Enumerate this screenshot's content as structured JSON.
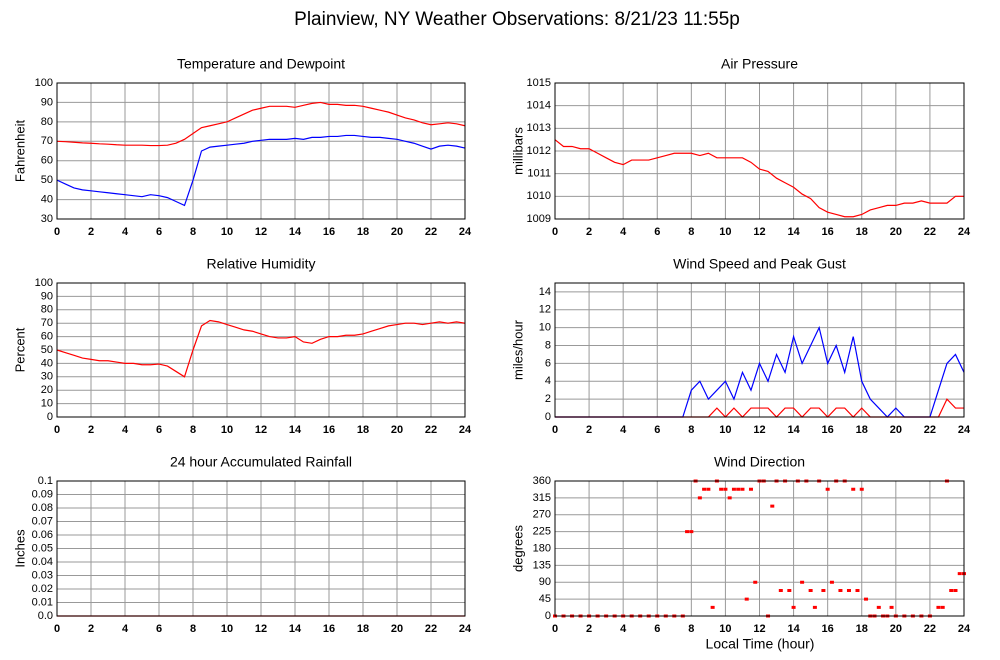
{
  "title": "Plainview, NY Weather Observations: 8/21/23 11:55p",
  "xlabel": "Local Time (hour)",
  "chart_data": [
    {
      "type": "line",
      "title": "Temperature and Dewpoint",
      "ylabel": "Fahrenheit",
      "x": [
        0,
        0.5,
        1,
        1.5,
        2,
        2.5,
        3,
        3.5,
        4,
        4.5,
        5,
        5.5,
        6,
        6.5,
        7,
        7.5,
        8,
        8.5,
        9,
        9.5,
        10,
        10.5,
        11,
        11.5,
        12,
        12.5,
        13,
        13.5,
        14,
        14.5,
        15,
        15.5,
        16,
        16.5,
        17,
        17.5,
        18,
        18.5,
        19,
        19.5,
        20,
        20.5,
        21,
        21.5,
        22,
        22.5,
        23,
        23.5,
        24
      ],
      "series": [
        {
          "color": "#ff0000",
          "values": [
            70,
            69.8,
            69.5,
            69.2,
            69,
            68.7,
            68.5,
            68.2,
            68,
            68,
            68,
            67.8,
            67.8,
            68,
            69,
            71,
            74,
            77,
            78,
            79,
            80,
            82,
            84,
            86,
            87,
            88,
            88,
            88,
            87.5,
            88.5,
            89.5,
            90,
            89,
            89,
            88.5,
            88.5,
            88,
            87,
            86,
            85,
            83.5,
            82,
            81,
            79.5,
            78.5,
            79,
            79.5,
            79,
            78
          ]
        },
        {
          "color": "#0000ff",
          "values": [
            50,
            48,
            46,
            45,
            44.5,
            44,
            43.5,
            43,
            42.5,
            42,
            41.5,
            42.5,
            42,
            41,
            39,
            37,
            50,
            65,
            67,
            67.5,
            68,
            68.5,
            69,
            70,
            70.5,
            71,
            71,
            71,
            71.5,
            71,
            72,
            72,
            72.5,
            72.5,
            73,
            73,
            72.5,
            72,
            72,
            71.5,
            71,
            70,
            69,
            67.5,
            66,
            67.5,
            68,
            67.5,
            66.5
          ]
        }
      ],
      "xlim": [
        0,
        24
      ],
      "xticks": [
        0,
        2,
        4,
        6,
        8,
        10,
        12,
        14,
        16,
        18,
        20,
        22,
        24
      ],
      "ylim": [
        30,
        100
      ],
      "yticks": [
        30,
        40,
        50,
        60,
        70,
        80,
        90,
        100
      ],
      "grid": true
    },
    {
      "type": "line",
      "title": "Air Pressure",
      "ylabel": "millibars",
      "x": [
        0,
        0.5,
        1,
        1.5,
        2,
        2.5,
        3,
        3.5,
        4,
        4.5,
        5,
        5.5,
        6,
        6.5,
        7,
        7.5,
        8,
        8.5,
        9,
        9.5,
        10,
        10.5,
        11,
        11.5,
        12,
        12.5,
        13,
        13.5,
        14,
        14.5,
        15,
        15.5,
        16,
        16.5,
        17,
        17.5,
        18,
        18.5,
        19,
        19.5,
        20,
        20.5,
        21,
        21.5,
        22,
        22.5,
        23,
        23.5,
        24
      ],
      "series": [
        {
          "color": "#ff0000",
          "values": [
            1012.5,
            1012.2,
            1012.2,
            1012.1,
            1012.1,
            1011.9,
            1011.7,
            1011.5,
            1011.4,
            1011.6,
            1011.6,
            1011.6,
            1011.7,
            1011.8,
            1011.9,
            1011.9,
            1011.9,
            1011.8,
            1011.9,
            1011.7,
            1011.7,
            1011.7,
            1011.7,
            1011.5,
            1011.2,
            1011.1,
            1010.8,
            1010.6,
            1010.4,
            1010.1,
            1009.9,
            1009.5,
            1009.3,
            1009.2,
            1009.1,
            1009.1,
            1009.2,
            1009.4,
            1009.5,
            1009.6,
            1009.6,
            1009.7,
            1009.7,
            1009.8,
            1009.7,
            1009.7,
            1009.7,
            1010,
            1010
          ]
        }
      ],
      "xlim": [
        0,
        24
      ],
      "xticks": [
        0,
        2,
        4,
        6,
        8,
        10,
        12,
        14,
        16,
        18,
        20,
        22,
        24
      ],
      "ylim": [
        1009,
        1015
      ],
      "yticks": [
        1009,
        1010,
        1011,
        1012,
        1013,
        1014,
        1015
      ],
      "grid": true
    },
    {
      "type": "line",
      "title": "Relative Humidity",
      "ylabel": "Percent",
      "x": [
        0,
        0.5,
        1,
        1.5,
        2,
        2.5,
        3,
        3.5,
        4,
        4.5,
        5,
        5.5,
        6,
        6.5,
        7,
        7.5,
        8,
        8.5,
        9,
        9.5,
        10,
        10.5,
        11,
        11.5,
        12,
        12.5,
        13,
        13.5,
        14,
        14.5,
        15,
        15.5,
        16,
        16.5,
        17,
        17.5,
        18,
        18.5,
        19,
        19.5,
        20,
        20.5,
        21,
        21.5,
        22,
        22.5,
        23,
        23.5,
        24
      ],
      "series": [
        {
          "color": "#ff0000",
          "values": [
            50,
            48,
            46,
            44,
            43,
            42,
            42,
            41,
            40,
            40,
            39,
            39,
            39.5,
            38,
            34,
            30,
            50,
            68,
            72,
            71,
            69,
            67,
            65,
            64,
            62,
            60,
            59,
            59,
            60,
            56,
            55,
            58,
            60,
            60,
            61,
            61,
            62,
            64,
            66,
            68,
            69,
            70,
            70,
            69,
            70,
            71,
            70,
            71,
            70
          ]
        }
      ],
      "xlim": [
        0,
        24
      ],
      "xticks": [
        0,
        2,
        4,
        6,
        8,
        10,
        12,
        14,
        16,
        18,
        20,
        22,
        24
      ],
      "ylim": [
        0,
        100
      ],
      "yticks": [
        0,
        10,
        20,
        30,
        40,
        50,
        60,
        70,
        80,
        90,
        100
      ],
      "grid": true
    },
    {
      "type": "line",
      "title": "Wind Speed and Peak Gust",
      "ylabel": "miles/hour",
      "x": [
        0,
        0.5,
        1,
        1.5,
        2,
        2.5,
        3,
        3.5,
        4,
        4.5,
        5,
        5.5,
        6,
        6.5,
        7,
        7.5,
        8,
        8.5,
        9,
        9.5,
        10,
        10.5,
        11,
        11.5,
        12,
        12.5,
        13,
        13.5,
        14,
        14.5,
        15,
        15.5,
        16,
        16.5,
        17,
        17.5,
        18,
        18.5,
        19,
        19.5,
        20,
        20.5,
        21,
        21.5,
        22,
        22.5,
        23,
        23.5,
        24
      ],
      "series": [
        {
          "color": "#0000ff",
          "values": [
            0,
            0,
            0,
            0,
            0,
            0,
            0,
            0,
            0,
            0,
            0,
            0,
            0,
            0,
            0,
            0,
            3,
            4,
            2,
            3,
            4,
            2,
            5,
            3,
            6,
            4,
            7,
            5,
            9,
            6,
            8,
            10,
            6,
            8,
            5,
            9,
            4,
            2,
            1,
            0,
            1,
            0,
            0,
            0,
            0,
            3,
            6,
            7,
            5
          ]
        },
        {
          "color": "#ff0000",
          "values": [
            0,
            0,
            0,
            0,
            0,
            0,
            0,
            0,
            0,
            0,
            0,
            0,
            0,
            0,
            0,
            0,
            0,
            0,
            0,
            1,
            0,
            1,
            0,
            1,
            1,
            1,
            0,
            1,
            1,
            0,
            1,
            1,
            0,
            1,
            1,
            0,
            1,
            0,
            0,
            0,
            0,
            0,
            0,
            0,
            0,
            0,
            2,
            1,
            1
          ]
        }
      ],
      "xlim": [
        0,
        24
      ],
      "xticks": [
        0,
        2,
        4,
        6,
        8,
        10,
        12,
        14,
        16,
        18,
        20,
        22,
        24
      ],
      "ylim": [
        0,
        15
      ],
      "yticks": [
        0,
        2,
        4,
        6,
        8,
        10,
        12,
        14
      ],
      "grid": true
    },
    {
      "type": "line",
      "title": "24 hour Accumulated Rainfall",
      "ylabel": "Inches",
      "x": [
        0,
        24
      ],
      "series": [
        {
          "color": "#ff0000",
          "values": [
            0,
            0
          ]
        }
      ],
      "xlim": [
        0,
        24
      ],
      "xticks": [
        0,
        2,
        4,
        6,
        8,
        10,
        12,
        14,
        16,
        18,
        20,
        22,
        24
      ],
      "ylim": [
        0,
        0.1
      ],
      "yticks": [
        {
          "value": 0,
          "label": "0.0"
        },
        0.01,
        0.02,
        0.03,
        0.04,
        0.05,
        0.06,
        0.07,
        0.08,
        0.09,
        0.1
      ],
      "grid": true
    },
    {
      "type": "scatter",
      "title": "Wind Direction",
      "ylabel": "degrees",
      "color": "#ff0000",
      "x": [
        0,
        0.5,
        1,
        1.5,
        2,
        2.5,
        3,
        3.5,
        4,
        4.5,
        5,
        5.5,
        6,
        6.5,
        7,
        7.5,
        7.75,
        8,
        8.25,
        8.5,
        8.75,
        9,
        9.25,
        9.5,
        9.75,
        10,
        10.25,
        10.5,
        10.75,
        11,
        11.25,
        11.5,
        11.75,
        12,
        12.25,
        12.5,
        12.75,
        13,
        13.25,
        13.5,
        13.75,
        14,
        14.25,
        14.5,
        14.75,
        15,
        15.25,
        15.5,
        15.75,
        16,
        16.25,
        16.5,
        16.75,
        17,
        17.25,
        17.5,
        17.75,
        18,
        18.25,
        18.5,
        18.75,
        19,
        19.25,
        19.5,
        19.75,
        20,
        20.5,
        21,
        21.5,
        22,
        22.5,
        22.75,
        23,
        23.25,
        23.5,
        23.75,
        24
      ],
      "values": [
        0,
        0,
        0,
        0,
        0,
        0,
        0,
        0,
        0,
        0,
        0,
        0,
        0,
        0,
        0,
        0,
        225,
        225,
        360,
        315,
        338,
        338,
        23,
        360,
        338,
        338,
        315,
        338,
        338,
        338,
        45,
        338,
        90,
        360,
        360,
        0,
        293,
        360,
        68,
        360,
        68,
        23,
        360,
        90,
        360,
        68,
        23,
        360,
        68,
        338,
        90,
        360,
        68,
        360,
        68,
        338,
        68,
        338,
        45,
        0,
        0,
        23,
        0,
        0,
        23,
        0,
        0,
        0,
        0,
        0,
        23,
        23,
        360,
        68,
        68,
        113,
        113
      ],
      "xlim": [
        0,
        24
      ],
      "xticks": [
        0,
        2,
        4,
        6,
        8,
        10,
        12,
        14,
        16,
        18,
        20,
        22,
        24
      ],
      "ylim": [
        0,
        360
      ],
      "yticks": [
        0,
        45,
        90,
        135,
        180,
        225,
        270,
        315,
        360
      ],
      "grid": true
    }
  ]
}
